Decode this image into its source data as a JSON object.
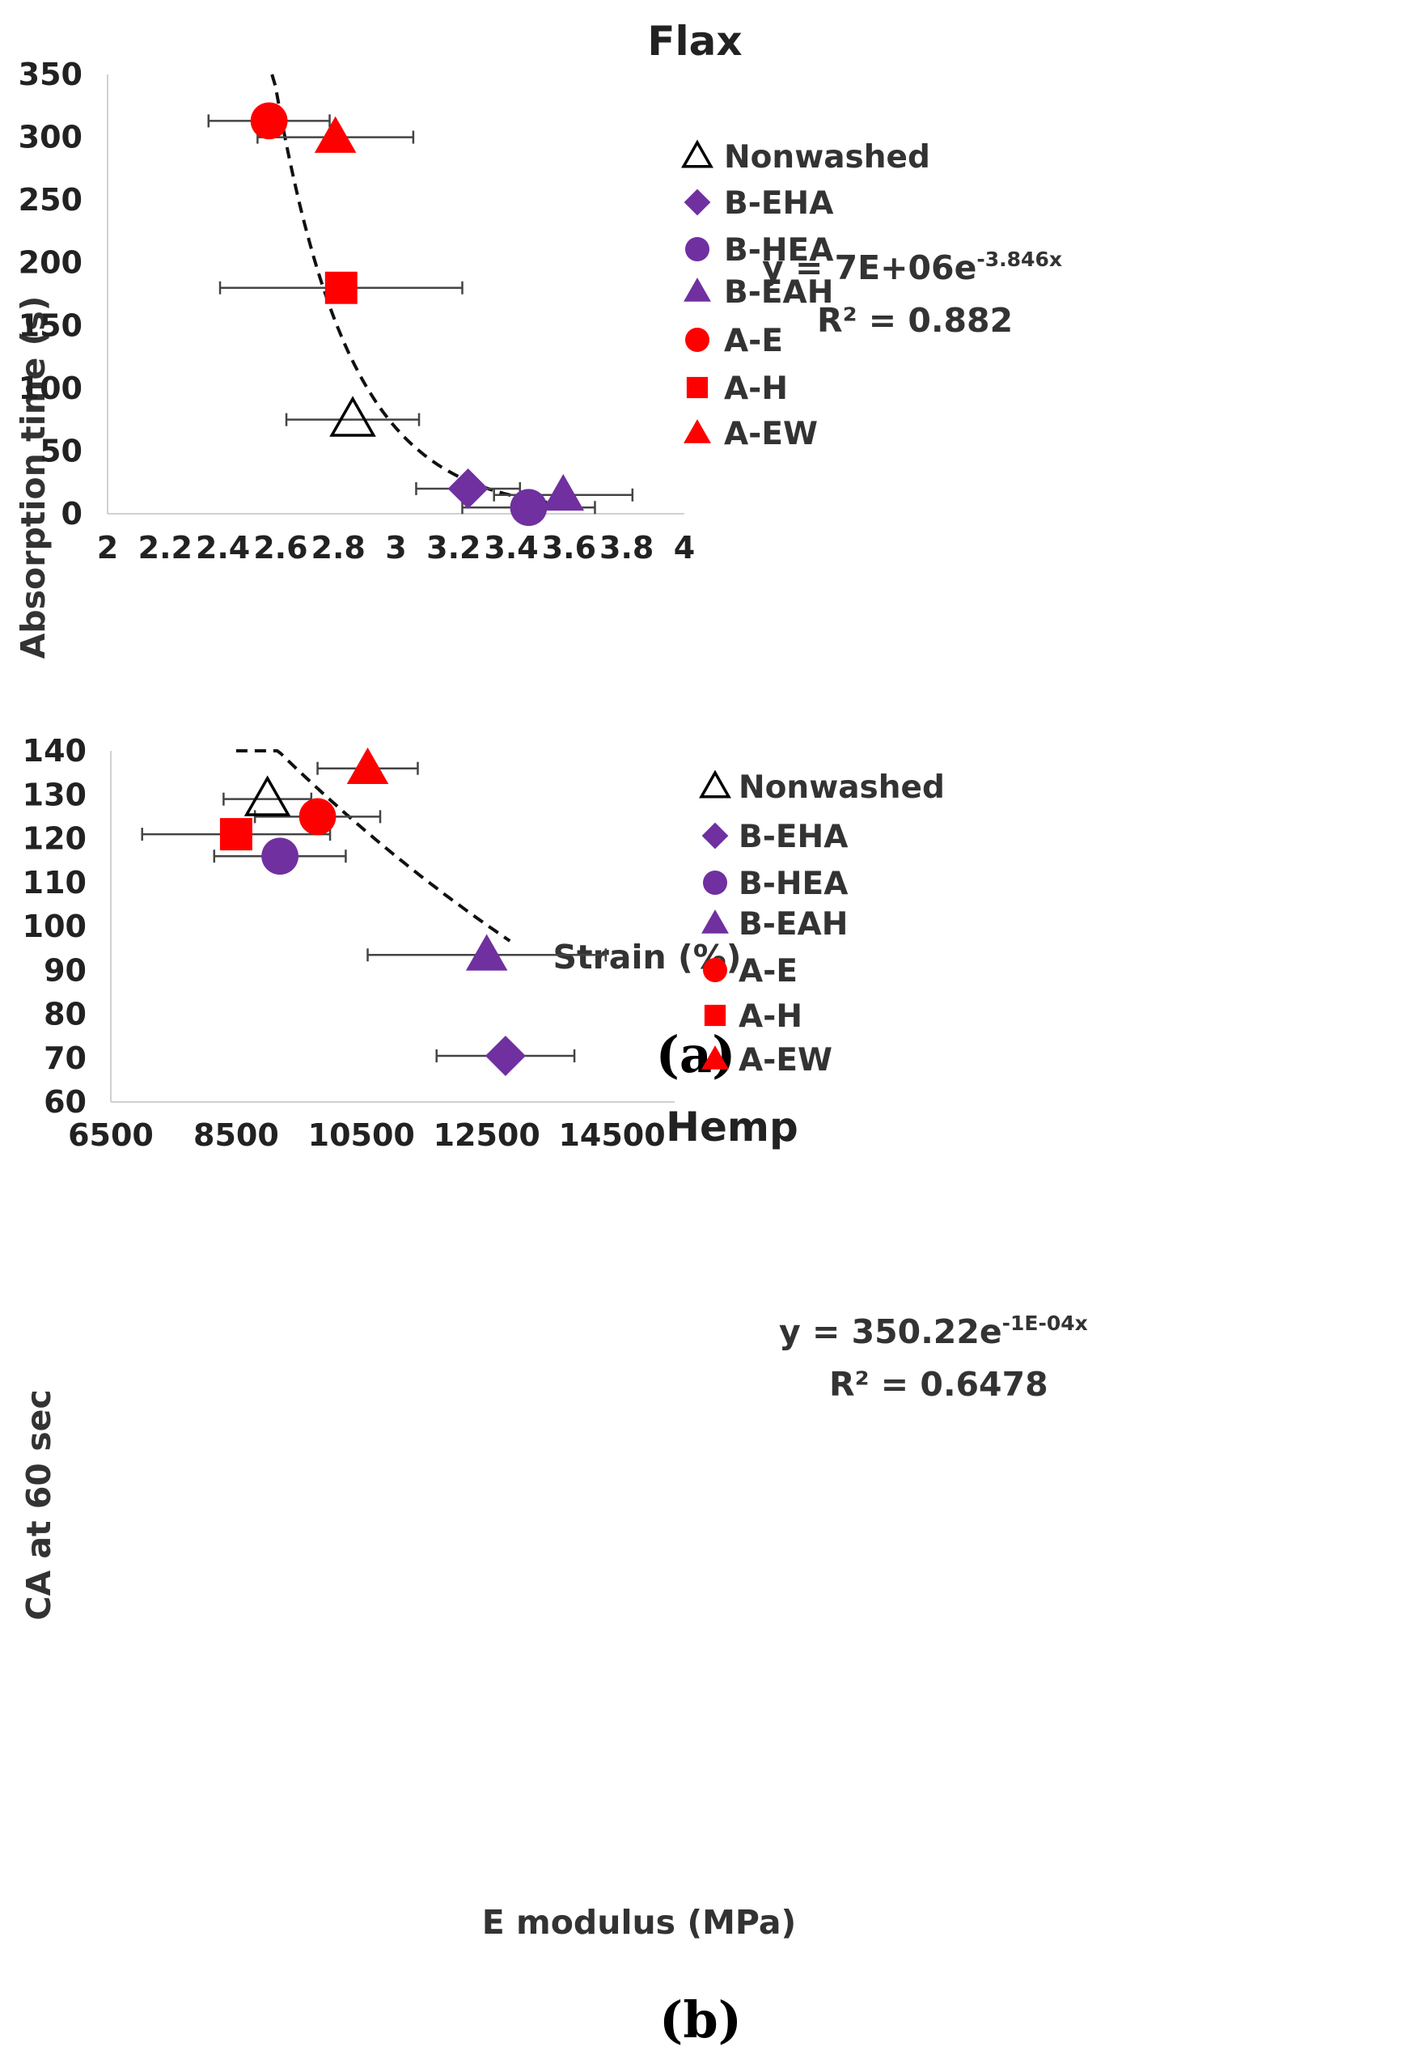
{
  "chart_data": [
    {
      "panel_label": "(a)",
      "type": "scatter",
      "title": "Flax",
      "xlabel": "Strain (%)",
      "ylabel": "Absorption time (s)",
      "xlim": [
        2,
        4
      ],
      "ylim": [
        0,
        350
      ],
      "xticks": [
        "2",
        "2.2",
        "2.4",
        "2.6",
        "2.8",
        "3",
        "3.2",
        "3.4",
        "3.6",
        "3.8",
        "4"
      ],
      "yticks": [
        "0",
        "50",
        "100",
        "150",
        "200",
        "250",
        "300",
        "350"
      ],
      "series": [
        {
          "name": "Nonwashed",
          "marker": "triangle-open",
          "color": "#000000",
          "x": 2.85,
          "y": 75,
          "xerr": 0.23
        },
        {
          "name": "B-EHA",
          "marker": "diamond",
          "color": "#7030a0",
          "x": 3.25,
          "y": 20,
          "xerr": 0.18
        },
        {
          "name": "B-HEA",
          "marker": "circle",
          "color": "#7030a0",
          "x": 3.46,
          "y": 5,
          "xerr": 0.23
        },
        {
          "name": "B-EAH",
          "marker": "triangle",
          "color": "#7030a0",
          "x": 3.58,
          "y": 15,
          "xerr": 0.24
        },
        {
          "name": "A-E",
          "marker": "circle",
          "color": "#ff0000",
          "x": 2.56,
          "y": 313,
          "xerr": 0.21
        },
        {
          "name": "A-H",
          "marker": "square",
          "color": "#ff0000",
          "x": 2.81,
          "y": 180,
          "xerr": 0.42
        },
        {
          "name": "A-EW",
          "marker": "triangle",
          "color": "#ff0000",
          "x": 2.79,
          "y": 300,
          "xerr": 0.27
        }
      ],
      "trendline": {
        "type": "exponential",
        "a": 7000000,
        "b": -3.846,
        "x_range": [
          2.57,
          3.53
        ],
        "equation_prefix": "y = 7E+06e",
        "equation_exponent": "-3.846x",
        "r2_text": "R² = 0.882"
      }
    },
    {
      "panel_label": "(b)",
      "type": "scatter",
      "title": "Hemp",
      "xlabel": "E modulus (MPa)",
      "ylabel": "CA at 60 sec",
      "xlim": [
        6500,
        15500
      ],
      "ylim": [
        60,
        140
      ],
      "xticks": [
        "6500",
        "8500",
        "10500",
        "12500",
        "14500"
      ],
      "yticks": [
        "60",
        "70",
        "80",
        "90",
        "100",
        "110",
        "120",
        "130",
        "140"
      ],
      "series": [
        {
          "name": "Nonwashed",
          "marker": "triangle-open",
          "color": "#000000",
          "x": 9000,
          "y": 129,
          "xerr": 700
        },
        {
          "name": "B-EHA",
          "marker": "diamond",
          "color": "#7030a0",
          "x": 12800,
          "y": 70.5,
          "xerr": 1100
        },
        {
          "name": "B-HEA",
          "marker": "circle",
          "color": "#7030a0",
          "x": 9200,
          "y": 116,
          "xerr": 1050
        },
        {
          "name": "B-EAH",
          "marker": "triangle",
          "color": "#7030a0",
          "x": 12500,
          "y": 93.5,
          "xerr": 1900
        },
        {
          "name": "A-E",
          "marker": "circle",
          "color": "#ff0000",
          "x": 9800,
          "y": 125,
          "xerr": 1000
        },
        {
          "name": "A-H",
          "marker": "square",
          "color": "#ff0000",
          "x": 8500,
          "y": 121,
          "xerr": 1500
        },
        {
          "name": "A-EW",
          "marker": "triangle",
          "color": "#ff0000",
          "x": 10600,
          "y": 136,
          "xerr": 800
        }
      ],
      "trendline": {
        "type": "exponential",
        "a": 350.22,
        "b": -0.0001,
        "x_range": [
          8500,
          12870
        ],
        "equation_prefix": "y = 350.22e",
        "equation_exponent": "-1E-04x",
        "r2_text": "R² = 0.6478"
      }
    }
  ]
}
